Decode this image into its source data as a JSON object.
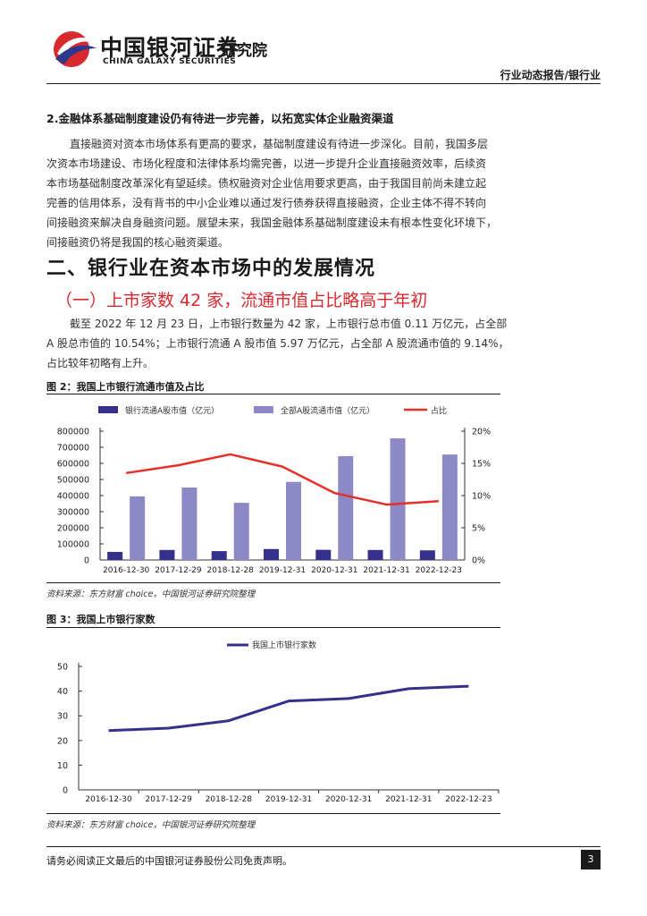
{
  "header": {
    "brand_cn": "中国银河证券",
    "brand_inst": "研究院",
    "brand_en": "CHINA GALAXY SECURITIES",
    "report_type": "行业动态报告/银行业",
    "logo_colors": [
      "#d8292f",
      "#2b3a8c"
    ]
  },
  "section2": {
    "heading": "2.金融体系基础制度建设仍有待进一步完善，以拓宽实体企业融资渠道",
    "lines": [
      "直接融资对资本市场体系有更高的要求，基础制度建设有待进一步深化。目前，我国多层",
      "次资本市场建设、市场化程度和法律体系均需完善，以进一步提升企业直接融资效率，后续资",
      "本市场基础制度改革深化有望延续。债权融资对企业信用要求更高，由于我国目前尚未建立起",
      "完善的信用体系，没有背书的中小企业难以通过发行债券获得直接融资，企业主体不得不转向",
      "间接融资来解决自身融资问题。展望未来，我国金融体系基础制度建设未有根本性变化环境下，",
      "间接融资仍将是我国的核心融资渠道。"
    ]
  },
  "chapter": {
    "title": "二、银行业在资本市场中的发展情况",
    "subtitle": "（一）上市家数 42 家，流通市值占比略高于年初",
    "lines": [
      "截至 2022 年 12 月 23 日，上市银行数量为 42 家，上市银行总市值 0.11 万亿元，占全部",
      "A 股总市值的 10.54%；上市银行流通 A 股市值 5.97 万亿元，占全部 A 股流通市值的 9.14%，",
      "占比较年初略有上升。"
    ]
  },
  "figure2": {
    "title": "图 2：我国上市银行流通市值及占比",
    "source": "资料来源：东方财富 choice，中国银河证券研究院整理"
  },
  "figure3": {
    "title": "图 3：我国上市银行家数",
    "source": "资料来源：东方财富 choice，中国银河证券研究院整理"
  },
  "footer": {
    "disclaimer": "请务必阅读正文最后的中国银河证券股份公司免责声明。",
    "page": "3"
  },
  "chart_data": [
    {
      "type": "bar",
      "categories": [
        "2016-12-30",
        "2017-12-29",
        "2018-12-28",
        "2019-12-31",
        "2020-12-31",
        "2021-12-31",
        "2022-12-23"
      ],
      "series": [
        {
          "name": "银行流通A股市值（亿元）",
          "values": [
            50000,
            62000,
            55000,
            68000,
            63000,
            62000,
            59700
          ],
          "color": "#35308c",
          "axis": "left"
        },
        {
          "name": "全部A股流通市值（亿元）",
          "values": [
            395000,
            450000,
            355000,
            485000,
            645000,
            755000,
            655000
          ],
          "color": "#8d89c6",
          "axis": "left"
        },
        {
          "name": "占比",
          "values": [
            13.5,
            14.7,
            16.4,
            14.5,
            10.4,
            8.6,
            9.14
          ],
          "color": "#e8302a",
          "axis": "right",
          "kind": "line"
        }
      ],
      "y_left": {
        "min": 0,
        "max": 800000,
        "ticks": [
          "0",
          "100000",
          "200000",
          "300000",
          "400000",
          "500000",
          "600000",
          "700000",
          "800000"
        ]
      },
      "y_right": {
        "min": 0,
        "max": 20,
        "ticks": [
          "0%",
          "5%",
          "10%",
          "15%",
          "20%"
        ]
      },
      "legend": "top",
      "grid": false
    },
    {
      "type": "line",
      "categories": [
        "2016-12-30",
        "2017-12-29",
        "2018-12-28",
        "2019-12-31",
        "2020-12-31",
        "2021-12-31",
        "2022-12-23"
      ],
      "series": [
        {
          "name": "我国上市银行家数",
          "values": [
            24,
            25,
            28,
            36,
            37,
            41,
            42
          ],
          "color": "#35308c"
        }
      ],
      "ylim": [
        0,
        50
      ],
      "yticks": [
        "0",
        "10",
        "20",
        "30",
        "40",
        "50"
      ],
      "legend": "top",
      "grid": false
    }
  ]
}
